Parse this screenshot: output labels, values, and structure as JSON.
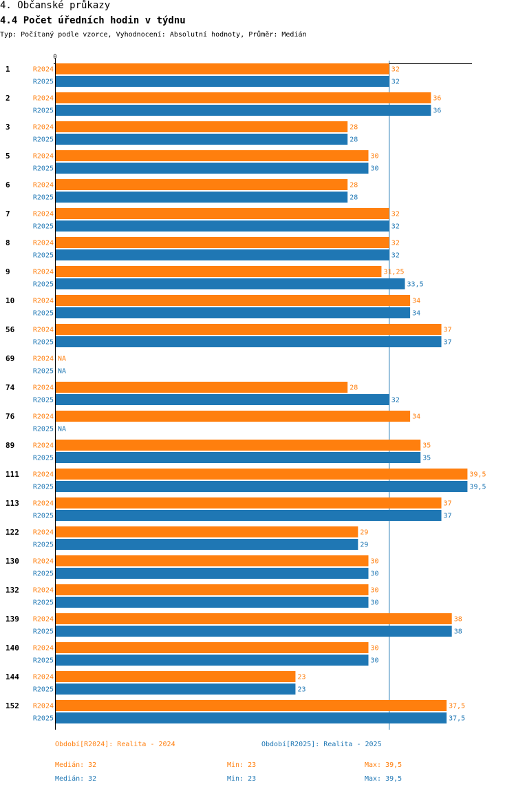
{
  "header": {
    "section": "4. Občanské průkazy",
    "title": "4.4 Počet úředních hodin v týdnu",
    "subtitle": "Typ: Počítaný podle vzorce, Vyhodnocení: Absolutní hodnoty, Průměr: Medián"
  },
  "colors": {
    "r2024": "#ff7f0e",
    "r2025": "#1f77b4",
    "axis": "#000000",
    "median_line": "#1f77b4"
  },
  "chart_data": {
    "type": "bar",
    "orientation": "horizontal",
    "title": "4.4 Počet úředních hodin v týdnu",
    "x_tick_labels": [
      "0"
    ],
    "xlim": [
      0,
      40
    ],
    "median_reference": 32,
    "categories": [
      "1",
      "2",
      "3",
      "5",
      "6",
      "7",
      "8",
      "9",
      "10",
      "56",
      "69",
      "74",
      "76",
      "89",
      "111",
      "113",
      "122",
      "130",
      "132",
      "139",
      "140",
      "144",
      "152"
    ],
    "series": [
      {
        "name": "R2024",
        "values": [
          32,
          36,
          28,
          30,
          28,
          32,
          32,
          31.25,
          34,
          37,
          null,
          28,
          34,
          35,
          39.5,
          37,
          29,
          30,
          30,
          38,
          30,
          23,
          37.5
        ],
        "labels": [
          "32",
          "36",
          "28",
          "30",
          "28",
          "32",
          "32",
          "31,25",
          "34",
          "37",
          "NA",
          "28",
          "34",
          "35",
          "39,5",
          "37",
          "29",
          "30",
          "30",
          "38",
          "30",
          "23",
          "37,5"
        ]
      },
      {
        "name": "R2025",
        "values": [
          32,
          36,
          28,
          30,
          28,
          32,
          32,
          33.5,
          34,
          37,
          null,
          32,
          null,
          35,
          39.5,
          37,
          29,
          30,
          30,
          38,
          30,
          23,
          37.5
        ],
        "labels": [
          "32",
          "36",
          "28",
          "30",
          "28",
          "32",
          "32",
          "33,5",
          "34",
          "37",
          "NA",
          "32",
          "NA",
          "35",
          "39,5",
          "37",
          "29",
          "30",
          "30",
          "38",
          "30",
          "23",
          "37,5"
        ]
      }
    ]
  },
  "legend": {
    "series_2024": "Období[R2024]: Realita - 2024",
    "series_2025": "Období[R2025]: Realita - 2025",
    "stats_2024": {
      "median": "Medián: 32",
      "min": "Min: 23",
      "max": "Max: 39,5"
    },
    "stats_2025": {
      "median": "Medián: 32",
      "min": "Min: 23",
      "max": "Max: 39,5"
    }
  }
}
